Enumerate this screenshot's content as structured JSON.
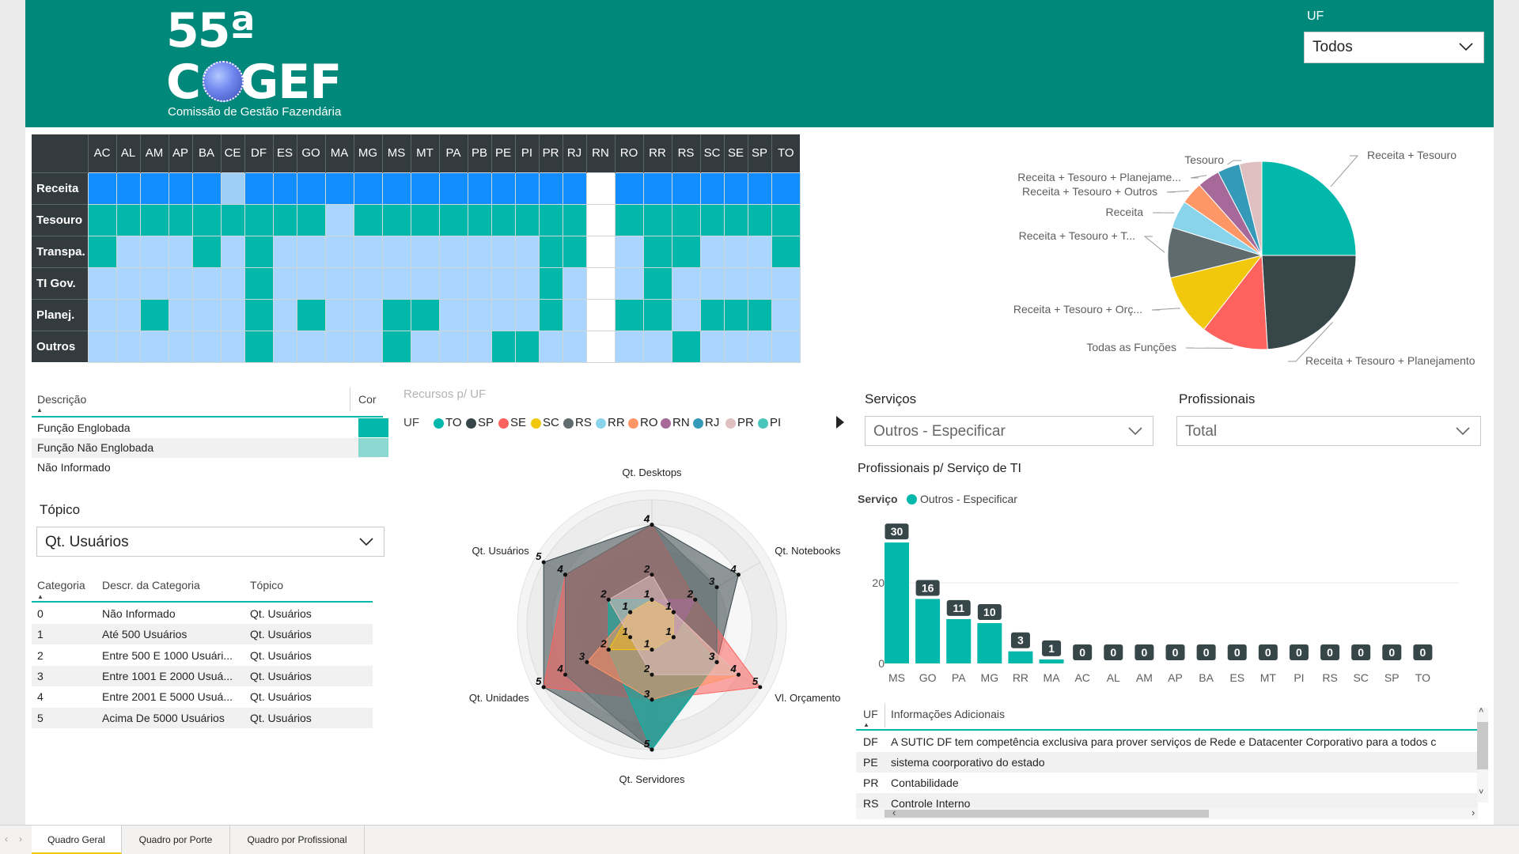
{
  "header": {
    "logo_number": "55ª",
    "logo_name": "COGEF",
    "logo_subtitle": "Comissão de Gestão Fazendária",
    "uf_filter_label": "UF",
    "uf_filter_value": "Todos",
    "color": "#00897B"
  },
  "matrix": {
    "columns": [
      "AC",
      "AL",
      "AM",
      "AP",
      "BA",
      "CE",
      "DF",
      "ES",
      "GO",
      "MA",
      "MG",
      "MS",
      "MT",
      "PA",
      "PB",
      "PE",
      "PI",
      "PR",
      "RJ",
      "RN",
      "RO",
      "RR",
      "RS",
      "SC",
      "SE",
      "SP",
      "TO"
    ],
    "rows": [
      {
        "label": "Receita",
        "cells": "BBBBBPBBBBBBBBBBBBBWBBBBBBB"
      },
      {
        "label": "Tesouro",
        "cells": "TTTTTTTTTLTTTTTTTTTWTTTTTTT"
      },
      {
        "label": "Transpa.",
        "cells": "TLLLTLTLLLLLLLLLLTTWLTTLLLT"
      },
      {
        "label": "TI Gov.",
        "cells": "LLLLLLTLLLLLLLLLLTLWLTLLLLL"
      },
      {
        "label": "Planej.",
        "cells": "LLTLLLTLTLLTTLLLLTLWTTLTTTL"
      },
      {
        "label": "Outros",
        "cells": "LLLLLLTLLLLTLLLTTLLWLLTLLLL"
      }
    ],
    "colors": {
      "B": "#118DFF",
      "T": "#01B8AA",
      "L": "#A9D5FF",
      "W": "#FFFFFF",
      "P": "#9FCFF4"
    }
  },
  "pie": {
    "slices": [
      {
        "label": "Receita + Tesouro",
        "value": 26,
        "color": "#01B8AA"
      },
      {
        "label": "Receita + Tesouro + Planejamento",
        "value": 25,
        "color": "#374649"
      },
      {
        "label": "Todas as Funções",
        "value": 12,
        "color": "#FD625E"
      },
      {
        "label": "Receita + Tesouro + Orç...",
        "value": 11,
        "color": "#F2C80F"
      },
      {
        "label": "Receita + Tesouro + T...",
        "value": 9,
        "color": "#5F6B6D"
      },
      {
        "label": "Receita",
        "value": 5,
        "color": "#8AD4EB"
      },
      {
        "label": "Receita + Tesouro + Outros",
        "value": 4,
        "color": "#FE9666"
      },
      {
        "label": "Receita + Tesouro + Planejame...",
        "value": 4,
        "color": "#A66999"
      },
      {
        "label": "Tesouro",
        "value": 4,
        "color": "#3599B8"
      },
      {
        "label": "",
        "value": 4,
        "color": "#DFBFBF"
      }
    ]
  },
  "legend": {
    "col_desc": "Descrição",
    "col_color": "Cor",
    "rows": [
      {
        "label": "Função Englobada",
        "color": "#01B8AA"
      },
      {
        "label": "Função Não Englobada",
        "color": "#8AD8D0"
      },
      {
        "label": "Não Informado",
        "color": ""
      }
    ]
  },
  "topico": {
    "label": "Tópico",
    "value": "Qt. Usuários"
  },
  "categories": {
    "headers": [
      "Categoria",
      "Descr. da Categoria",
      "Tópico"
    ],
    "rows": [
      [
        "0",
        "Não Informado",
        "Qt. Usuários"
      ],
      [
        "1",
        "Até 500 Usuários",
        "Qt. Usuários"
      ],
      [
        "2",
        "Entre 500 E 1000 Usuári...",
        "Qt. Usuários"
      ],
      [
        "3",
        "Entre 1001 E 2000 Usuá...",
        "Qt. Usuários"
      ],
      [
        "4",
        "Entre 2001 E 5000 Usuá...",
        "Qt. Usuários"
      ],
      [
        "5",
        "Acima De 5000 Usuários",
        "Qt. Usuários"
      ]
    ]
  },
  "radar": {
    "title": "Recursos p/ UF",
    "legend_label": "UF",
    "legend": [
      {
        "name": "TO",
        "color": "#01B8AA"
      },
      {
        "name": "SP",
        "color": "#374649"
      },
      {
        "name": "SE",
        "color": "#FD625E"
      },
      {
        "name": "SC",
        "color": "#F2C80F"
      },
      {
        "name": "RS",
        "color": "#5F6B6D"
      },
      {
        "name": "RR",
        "color": "#8AD4EB"
      },
      {
        "name": "RO",
        "color": "#FE9666"
      },
      {
        "name": "RN",
        "color": "#A66999"
      },
      {
        "name": "RJ",
        "color": "#3599B8"
      },
      {
        "name": "PR",
        "color": "#DFBFBF"
      },
      {
        "name": "PI",
        "color": "#4AC5BB"
      }
    ],
    "axes": [
      "Qt. Desktops",
      "Qt. Notebooks",
      "Vl. Orçamento",
      "Qt. Servidores",
      "Qt. Unidades",
      "Qt. Usuários"
    ],
    "max": 5,
    "series": [
      {
        "name": "SP",
        "values": [
          4,
          4,
          3,
          5,
          5,
          5
        ]
      },
      {
        "name": "SE",
        "values": [
          4,
          2,
          5,
          3,
          5,
          4
        ]
      },
      {
        "name": "RS",
        "values": [
          4,
          3,
          3,
          5,
          4,
          4
        ]
      },
      {
        "name": "TO",
        "values": [
          1,
          1,
          3,
          5,
          2,
          2
        ]
      },
      {
        "name": "RO",
        "values": [
          1,
          1,
          4,
          3,
          3,
          1
        ]
      },
      {
        "name": "RN",
        "values": [
          1,
          2,
          1,
          1,
          2,
          1
        ]
      },
      {
        "name": "SC",
        "values": [
          1,
          1,
          1,
          1,
          2,
          1
        ]
      },
      {
        "name": "PR",
        "values": [
          2,
          1,
          4,
          2,
          1,
          2
        ]
      }
    ]
  },
  "servicos": {
    "label": "Serviços",
    "value": "Outros - Especificar"
  },
  "profissionais": {
    "label": "Profissionais",
    "value": "Total"
  },
  "chart_data": {
    "type": "bar",
    "title": "Profissionais p/ Serviço de TI",
    "legend_label": "Serviço",
    "series_name": "Outros - Especificar",
    "color": "#01B8AA",
    "categories": [
      "MS",
      "GO",
      "PA",
      "MG",
      "RR",
      "MA",
      "AC",
      "AL",
      "AM",
      "AP",
      "BA",
      "ES",
      "MT",
      "PI",
      "RS",
      "SC",
      "SP",
      "TO"
    ],
    "values": [
      30,
      16,
      11,
      10,
      3,
      1,
      0,
      0,
      0,
      0,
      0,
      0,
      0,
      0,
      0,
      0,
      0,
      0
    ],
    "yticks": [
      "0",
      "20"
    ],
    "ylim": [
      0,
      31
    ]
  },
  "info": {
    "headers": [
      "UF",
      "Informações Adicionais"
    ],
    "rows": [
      [
        "DF",
        "A SUTIC DF tem competência exclusiva para prover serviços de Rede e Datacenter Corporativo para a todos c"
      ],
      [
        "PE",
        "sistema coorporativo do estado"
      ],
      [
        "PR",
        "Contabilidade"
      ],
      [
        "RS",
        "Controle Interno"
      ]
    ]
  },
  "tabs": [
    "Quadro Geral",
    "Quadro por Porte",
    "Quadro por Profissional"
  ]
}
